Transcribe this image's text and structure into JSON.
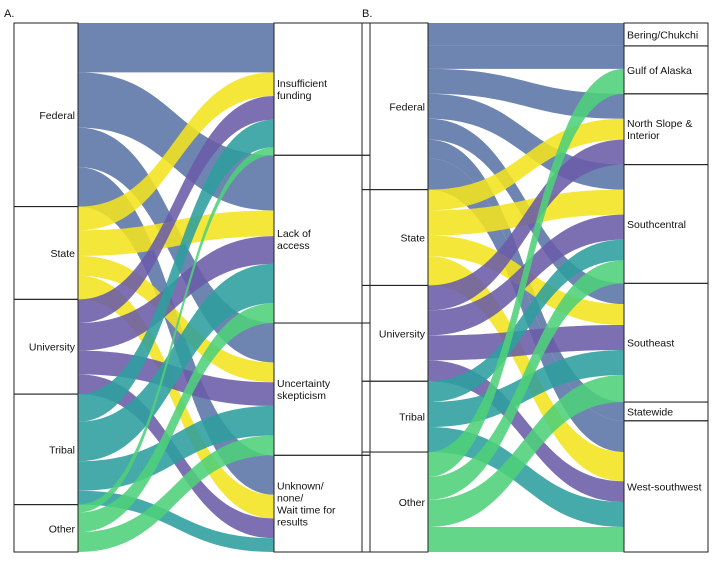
{
  "colors": {
    "Federal": "#5a74a6",
    "State": "#f4e31f",
    "University": "#6a5ca8",
    "Tribal": "#2e9e9e",
    "Other": "#4fd07a",
    "line": "#222222"
  },
  "panels": [
    {
      "label": "A.",
      "left_nodes": [
        {
          "name": "Federal",
          "value": 93
        },
        {
          "name": "State",
          "value": 47
        },
        {
          "name": "University",
          "value": 48
        },
        {
          "name": "Tribal",
          "value": 56
        },
        {
          "name": "Other",
          "value": 24
        }
      ],
      "right_nodes": [
        {
          "name": "Insufficient funding",
          "lines": [
            "Insufficient",
            "funding"
          ],
          "value": 67
        },
        {
          "name": "Lack of access",
          "lines": [
            "Lack of",
            "access"
          ],
          "value": 85
        },
        {
          "name": "Uncertainty skepticism",
          "lines": [
            "Uncertainty",
            "skepticism"
          ],
          "value": 67
        },
        {
          "name": "Unknown/ none/ Wait time for results",
          "lines": [
            "Unknown/",
            "none/",
            "Wait time for",
            "results"
          ],
          "value": 49
        }
      ],
      "flows": [
        {
          "source": "Federal",
          "target": "Insufficient funding",
          "value": 25
        },
        {
          "source": "Federal",
          "target": "Lack of access",
          "value": 28
        },
        {
          "source": "Federal",
          "target": "Uncertainty skepticism",
          "value": 20
        },
        {
          "source": "Federal",
          "target": "Unknown/ none/ Wait time for results",
          "value": 20
        },
        {
          "source": "State",
          "target": "Insufficient funding",
          "value": 12
        },
        {
          "source": "State",
          "target": "Lack of access",
          "value": 13
        },
        {
          "source": "State",
          "target": "Uncertainty skepticism",
          "value": 10
        },
        {
          "source": "State",
          "target": "Unknown/ none/ Wait time for results",
          "value": 12
        },
        {
          "source": "University",
          "target": "Insufficient funding",
          "value": 12
        },
        {
          "source": "University",
          "target": "Lack of access",
          "value": 14
        },
        {
          "source": "University",
          "target": "Uncertainty skepticism",
          "value": 12
        },
        {
          "source": "University",
          "target": "Unknown/ none/ Wait time for results",
          "value": 10
        },
        {
          "source": "Tribal",
          "target": "Insufficient funding",
          "value": 14
        },
        {
          "source": "Tribal",
          "target": "Lack of access",
          "value": 20
        },
        {
          "source": "Tribal",
          "target": "Uncertainty skepticism",
          "value": 15
        },
        {
          "source": "Tribal",
          "target": "Unknown/ none/ Wait time for results",
          "value": 7
        },
        {
          "source": "Other",
          "target": "Insufficient funding",
          "value": 4
        },
        {
          "source": "Other",
          "target": "Lack of access",
          "value": 10
        },
        {
          "source": "Other",
          "target": "Uncertainty skepticism",
          "value": 10
        }
      ]
    },
    {
      "label": "B.",
      "left_nodes": [
        {
          "name": "Federal",
          "value": 80
        },
        {
          "name": "State",
          "value": 46
        },
        {
          "name": "University",
          "value": 46
        },
        {
          "name": "Tribal",
          "value": 34
        },
        {
          "name": "Other",
          "value": 48
        }
      ],
      "right_nodes": [
        {
          "name": "Bering/Chukchi",
          "lines": [
            "Bering/Chukchi"
          ],
          "value": 11
        },
        {
          "name": "Gulf of Alaska",
          "lines": [
            "Gulf of Alaska"
          ],
          "value": 23
        },
        {
          "name": "North Slope & Interior",
          "lines": [
            "North Slope &",
            "Interior"
          ],
          "value": 34
        },
        {
          "name": "Southcentral",
          "lines": [
            "Southcentral"
          ],
          "value": 57
        },
        {
          "name": "Southeast",
          "lines": [
            "Southeast"
          ],
          "value": 57
        },
        {
          "name": "Statewide",
          "lines": [
            "Statewide"
          ],
          "value": 9
        },
        {
          "name": "West-southwest",
          "lines": [
            "West-southwest"
          ],
          "value": 63
        }
      ],
      "flows": [
        {
          "source": "Federal",
          "target": "Bering/Chukchi",
          "value": 11
        },
        {
          "source": "Federal",
          "target": "Gulf of Alaska",
          "value": 11
        },
        {
          "source": "Federal",
          "target": "North Slope & Interior",
          "value": 12
        },
        {
          "source": "Federal",
          "target": "Southcentral",
          "value": 12
        },
        {
          "source": "Federal",
          "target": "Southeast",
          "value": 10
        },
        {
          "source": "Federal",
          "target": "Statewide",
          "value": 9
        },
        {
          "source": "Federal",
          "target": "West-southwest",
          "value": 15
        },
        {
          "source": "State",
          "target": "North Slope & Interior",
          "value": 10
        },
        {
          "source": "State",
          "target": "Southcentral",
          "value": 12
        },
        {
          "source": "State",
          "target": "Southeast",
          "value": 10
        },
        {
          "source": "State",
          "target": "West-southwest",
          "value": 14
        },
        {
          "source": "University",
          "target": "North Slope & Interior",
          "value": 12
        },
        {
          "source": "University",
          "target": "Southcentral",
          "value": 12
        },
        {
          "source": "University",
          "target": "Southeast",
          "value": 12
        },
        {
          "source": "University",
          "target": "West-southwest",
          "value": 10
        },
        {
          "source": "Tribal",
          "target": "Southcentral",
          "value": 10
        },
        {
          "source": "Tribal",
          "target": "Southeast",
          "value": 12
        },
        {
          "source": "Tribal",
          "target": "West-southwest",
          "value": 12
        },
        {
          "source": "Other",
          "target": "Gulf of Alaska",
          "value": 12
        },
        {
          "source": "Other",
          "target": "Southcentral",
          "value": 11
        },
        {
          "source": "Other",
          "target": "Southeast",
          "value": 13
        },
        {
          "source": "Other",
          "target": "West-southwest",
          "value": 12
        }
      ]
    }
  ]
}
